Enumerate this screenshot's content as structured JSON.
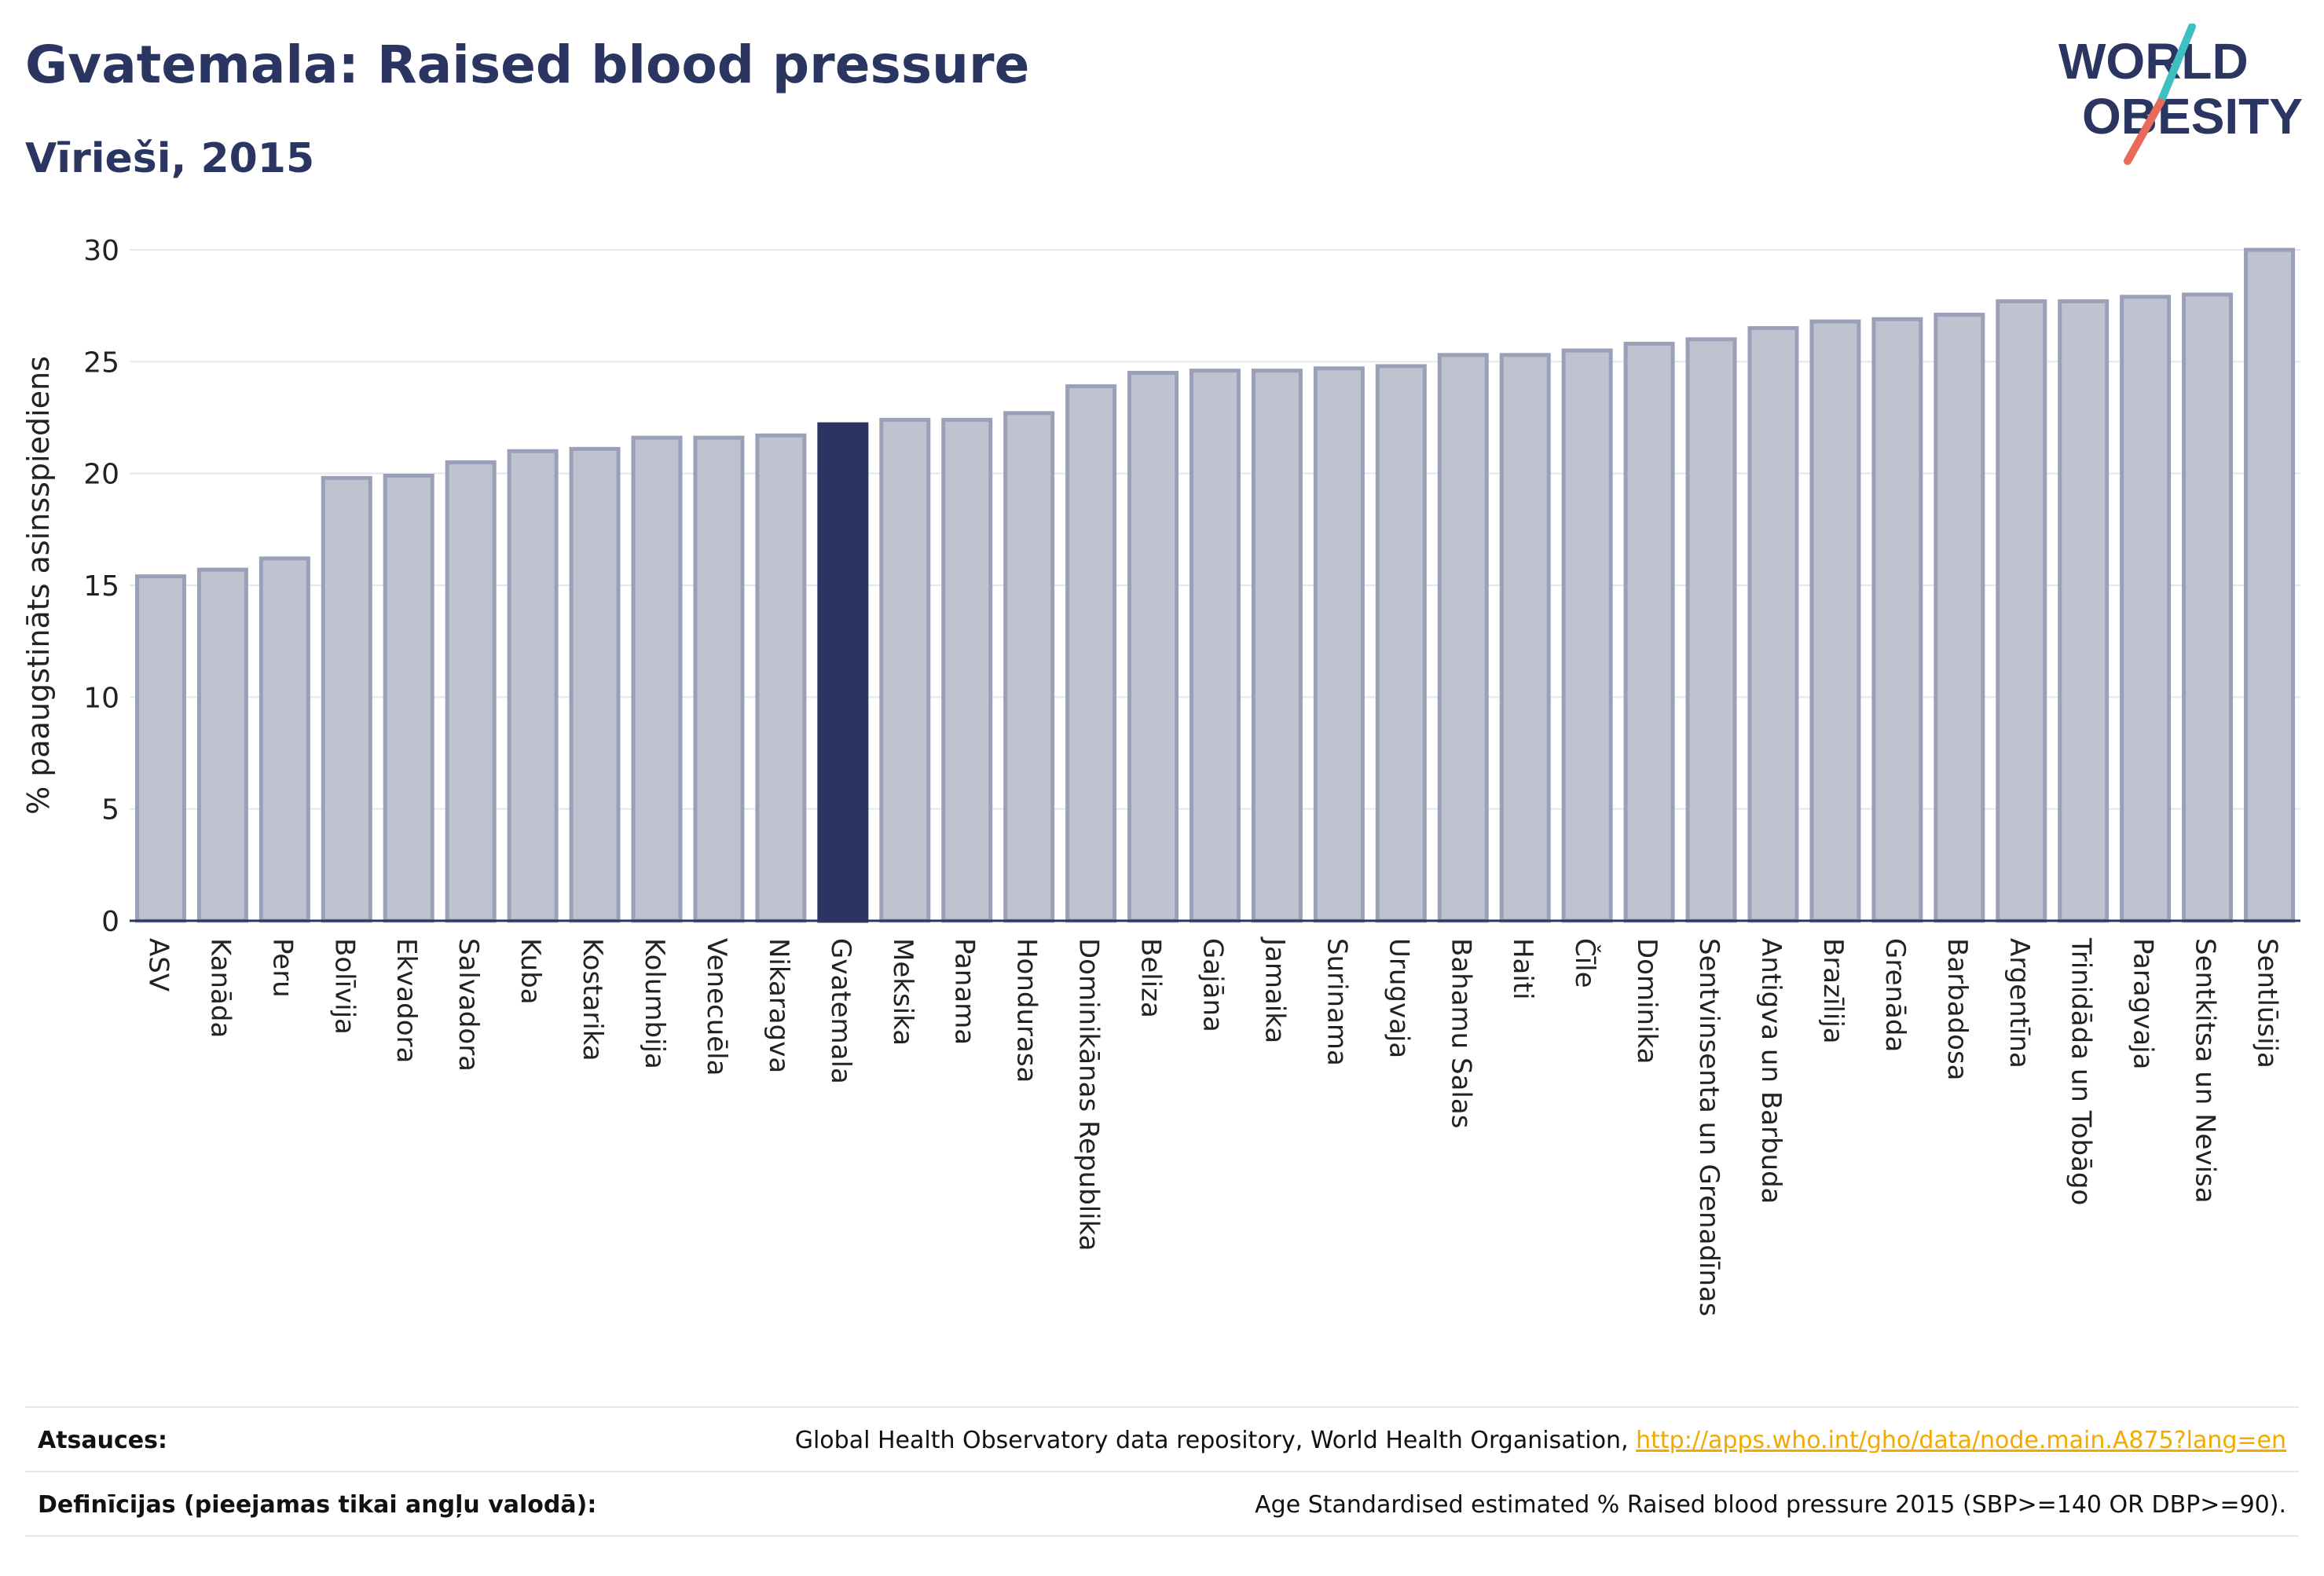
{
  "header": {
    "title": "Gvatemala: Raised blood pressure",
    "subtitle": "Vīrieši, 2015"
  },
  "logo": {
    "line1": "WORLD",
    "line2": "OBESITY"
  },
  "colors": {
    "title": "#2b3561",
    "bar_default": "#bfc3d0",
    "bar_default_border": "#9aa0b8",
    "bar_highlight": "#2b3561",
    "logo_slash_teal": "#3fbfbf",
    "logo_slash_coral": "#e86a5a",
    "link": "#f2a900"
  },
  "chart_data": {
    "type": "bar",
    "ylabel": "% paaugstināts asinsspiediens",
    "xlabel": "",
    "ylim": [
      0,
      30
    ],
    "yticks": [
      0,
      5,
      10,
      15,
      20,
      25,
      30
    ],
    "grid": true,
    "highlight": "Gvatemala",
    "categories": [
      "ASV",
      "Kanāda",
      "Peru",
      "Bolīvija",
      "Ekvadora",
      "Salvadora",
      "Kuba",
      "Kostarika",
      "Kolumbija",
      "Venecuēla",
      "Nikaragva",
      "Gvatemala",
      "Meksika",
      "Panama",
      "Hondurasa",
      "Dominikānas Republika",
      "Beliza",
      "Gajāna",
      "Jamaika",
      "Surinama",
      "Urugvaja",
      "Bahamu Salas",
      "Haiti",
      "Čīle",
      "Dominika",
      "Sentvinsenta un Grenadīnas",
      "Antigva un Barbuda",
      "Brazīlija",
      "Grenāda",
      "Barbadosa",
      "Argentīna",
      "Trinidāda un Tobāgo",
      "Paragvaja",
      "Sentkitsa un Nevisa",
      "Sentlūsija"
    ],
    "values": [
      15.4,
      15.7,
      16.2,
      19.8,
      19.9,
      20.5,
      21.0,
      21.1,
      21.6,
      21.6,
      21.7,
      22.2,
      22.4,
      22.4,
      22.7,
      23.9,
      24.5,
      24.6,
      24.6,
      24.7,
      24.8,
      25.3,
      25.3,
      25.5,
      25.8,
      26.0,
      26.5,
      26.8,
      26.9,
      27.1,
      27.7,
      27.7,
      27.9,
      28.0,
      30.0
    ]
  },
  "sources": {
    "label": "Atsauces:",
    "text": "Global Health Observatory data repository, World Health Organisation, ",
    "link": "http://apps.who.int/gho/data/node.main.A875?lang=en"
  },
  "definitions": {
    "label": "Definīcijas (pieejamas tikai angļu valodā):",
    "text": "Age Standardised estimated % Raised blood pressure 2015 (SBP>=140 OR DBP>=90)."
  }
}
